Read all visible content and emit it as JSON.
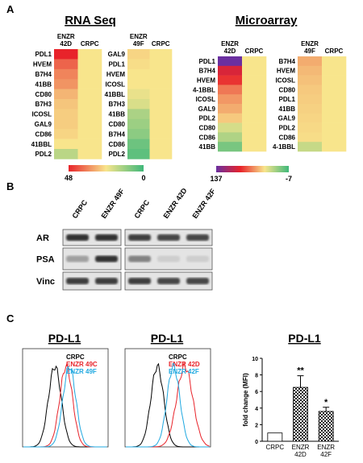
{
  "panel_labels": [
    "A",
    "B",
    "C"
  ],
  "heatmap_groups": [
    {
      "title": "RNA Seq",
      "scale_max": 48,
      "scale_min": 0,
      "colors": [
        "#e8232a",
        "#f8e58c",
        "#3fb87a"
      ],
      "heatmaps": [
        {
          "columns": [
            "ENZR 42D",
            "CRPC"
          ],
          "rows": [
            "PDL1",
            "HVEM",
            "B7H4",
            "41BB",
            "CD80",
            "B7H3",
            "ICOSL",
            "GAL9",
            "CD86",
            "41BBL",
            "PDL2"
          ],
          "values": [
            [
              48,
              40,
              36,
              34,
              30,
              28,
              27,
              27,
              26,
              24,
              16
            ],
            [
              24,
              24,
              24,
              24,
              24,
              24,
              24,
              24,
              24,
              24,
              24
            ]
          ]
        },
        {
          "columns": [
            "ENZR 49F",
            "CRPC"
          ],
          "rows": [
            "GAL9",
            "PDL1",
            "HVEM",
            "ICOSL",
            "41BBL",
            "B7H3",
            "41BB",
            "CD80",
            "B7H4",
            "CD86",
            "PDL2"
          ],
          "values": [
            [
              26,
              25,
              24,
              24,
              22,
              20,
              14,
              12,
              10,
              6,
              4
            ],
            [
              24,
              24,
              24,
              24,
              24,
              24,
              24,
              24,
              24,
              24,
              24
            ]
          ]
        }
      ]
    },
    {
      "title": "Microarray",
      "scale_max": 137,
      "scale_min": -7,
      "colors": [
        "#6a2fa0",
        "#e8232a",
        "#f8e58c",
        "#3fb87a"
      ],
      "heatmaps": [
        {
          "columns": [
            "ENZR 42D",
            "CRPC"
          ],
          "rows": [
            "PDL1",
            "B7H4",
            "HVEM",
            "4-1BBL",
            "ICOSL",
            "GAL9",
            "PDL2",
            "CD80",
            "CD86",
            "41BB"
          ],
          "values": [
            [
              137,
              95,
              85,
              68,
              60,
              55,
              48,
              32,
              22,
              8
            ],
            [
              41,
              41,
              41,
              41,
              41,
              41,
              41,
              41,
              41,
              41
            ]
          ]
        },
        {
          "columns": [
            "ENZR 49F",
            "CRPC"
          ],
          "rows": [
            "B7H4",
            "HVEM",
            "ICOSL",
            "CD80",
            "PDL1",
            "41BB",
            "GAL9",
            "PDL2",
            "CD86",
            "4-1BBL"
          ],
          "values": [
            [
              55,
              52,
              50,
              48,
              47,
              46,
              45,
              44,
              43,
              28
            ],
            [
              41,
              41,
              41,
              41,
              41,
              41,
              41,
              41,
              41,
              41
            ]
          ]
        }
      ]
    }
  ],
  "western_blot": {
    "lanes_left": [
      "CRPC",
      "ENZR 49F"
    ],
    "lanes_right": [
      "CRPC",
      "ENZR 42D",
      "ENZR 42F"
    ],
    "rows": [
      "AR",
      "PSA",
      "Vinc"
    ]
  },
  "flow": [
    {
      "title": "PD-L1",
      "legend": [
        {
          "name": "CRPC",
          "color": "#000000"
        },
        {
          "name": "ENZR 49C",
          "color": "#e8232a"
        },
        {
          "name": "ENZR 49F",
          "color": "#1fa8e0"
        }
      ]
    },
    {
      "title": "PD-L1",
      "legend": [
        {
          "name": "CRPC",
          "color": "#000000"
        },
        {
          "name": "ENZR 42D",
          "color": "#e8232a"
        },
        {
          "name": "ENZR 42F",
          "color": "#1fa8e0"
        }
      ]
    }
  ],
  "chart_data": {
    "type": "bar",
    "title": "PD-L1",
    "ylabel": "fold change (MFI)",
    "categories": [
      "CRPC",
      "ENZR 42D",
      "ENZR 42F"
    ],
    "values": [
      1,
      6.5,
      3.6
    ],
    "errors": [
      null,
      1.4,
      0.5
    ],
    "value_annotations": [
      null,
      "**",
      "*"
    ],
    "patterns": [
      "open",
      "checkered",
      "checkered"
    ],
    "ylim": [
      0,
      10
    ],
    "yticks": [
      0,
      2,
      4,
      6,
      8,
      10
    ]
  }
}
